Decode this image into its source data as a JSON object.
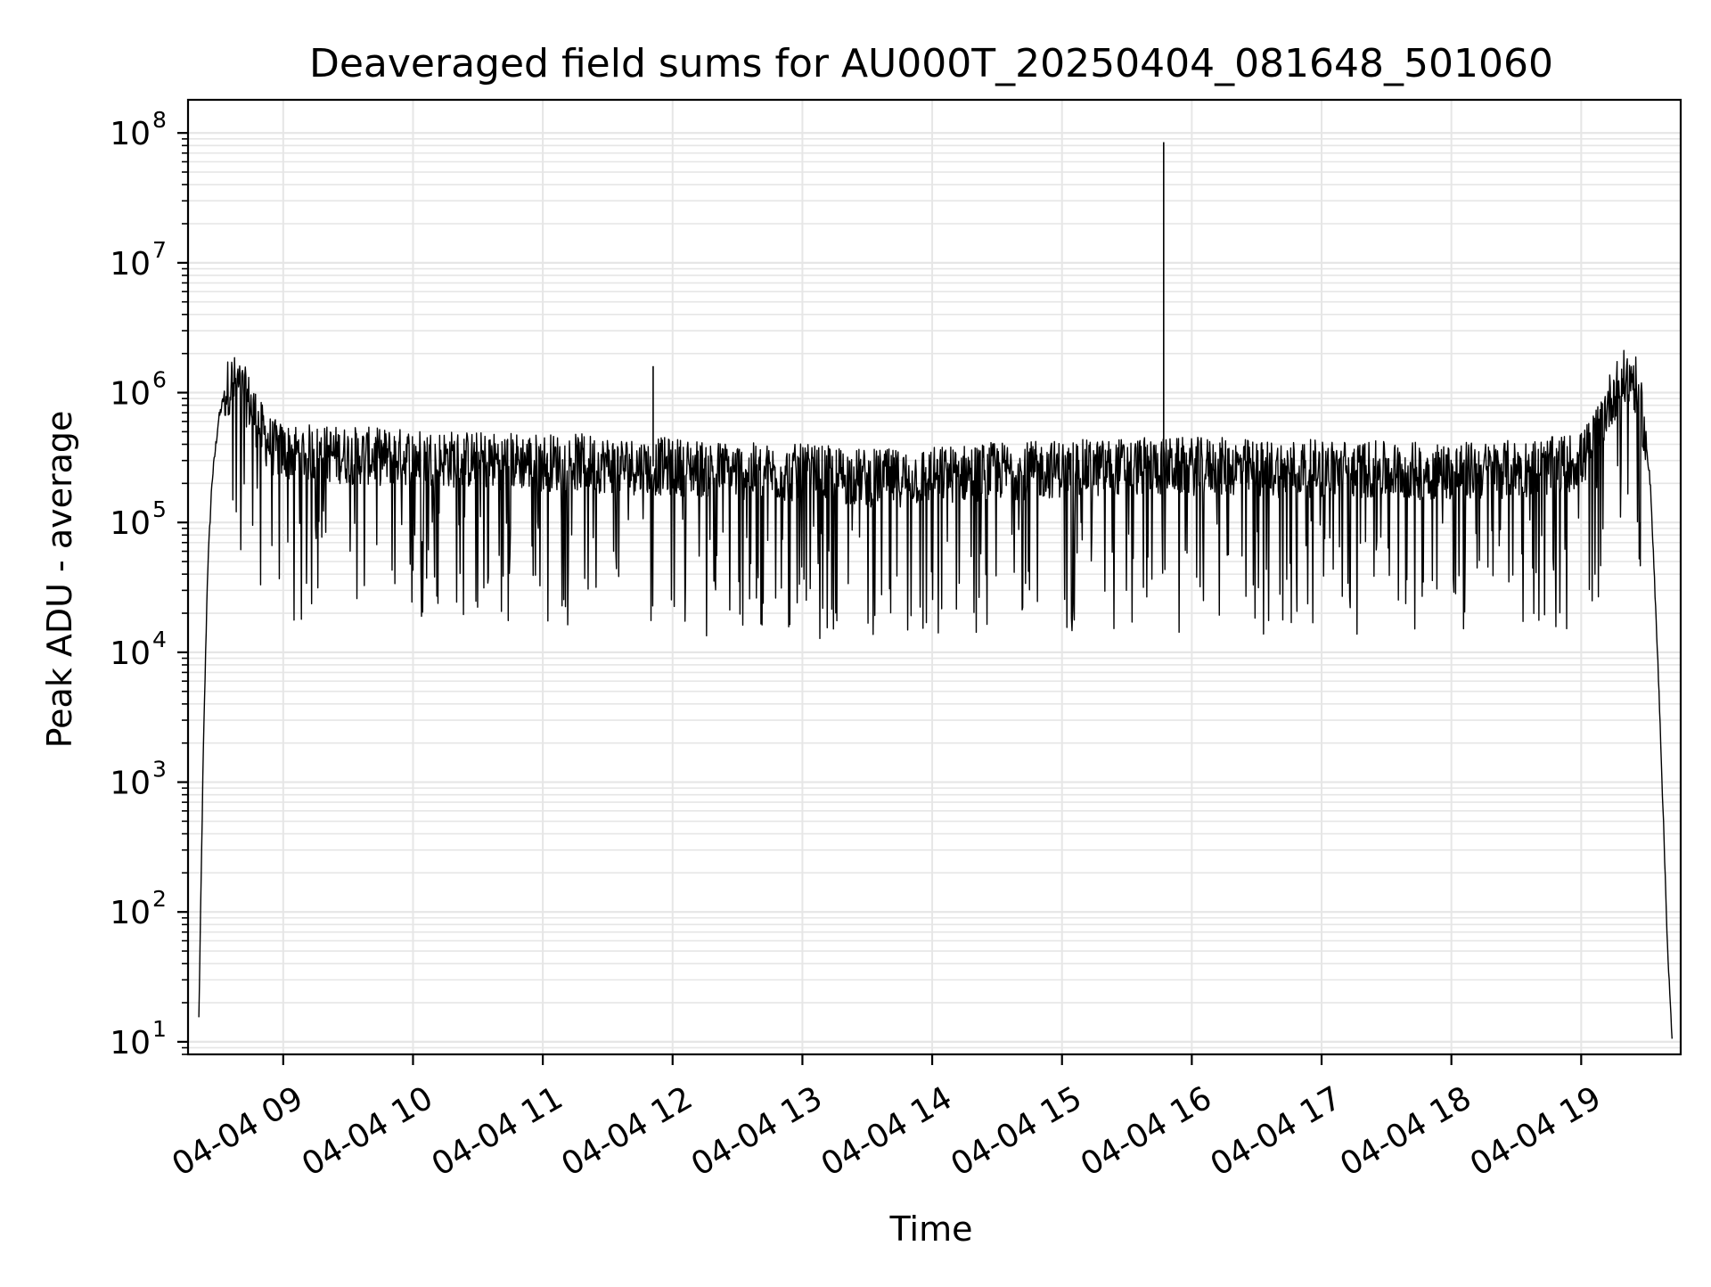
{
  "chart_data": {
    "type": "line",
    "title": "Deaveraged field sums for AU000T_20250404_081648_501060",
    "xlabel": "Time",
    "ylabel": "Peak ADU - average",
    "y_scale": "log",
    "ylim": [
      8,
      180000000
    ],
    "xlim": [
      "2025-04-04 08:16",
      "2025-04-04 19:46"
    ],
    "grid": true,
    "grid_minor": true,
    "line_color": "#000000",
    "grid_color": "#e6e6e6",
    "x_ticks": [
      {
        "value": "2025-04-04 09:00",
        "label": "04-04 09"
      },
      {
        "value": "2025-04-04 10:00",
        "label": "04-04 10"
      },
      {
        "value": "2025-04-04 11:00",
        "label": "04-04 11"
      },
      {
        "value": "2025-04-04 12:00",
        "label": "04-04 12"
      },
      {
        "value": "2025-04-04 13:00",
        "label": "04-04 13"
      },
      {
        "value": "2025-04-04 14:00",
        "label": "04-04 14"
      },
      {
        "value": "2025-04-04 15:00",
        "label": "04-04 15"
      },
      {
        "value": "2025-04-04 16:00",
        "label": "04-04 16"
      },
      {
        "value": "2025-04-04 17:00",
        "label": "04-04 17"
      },
      {
        "value": "2025-04-04 18:00",
        "label": "04-04 18"
      },
      {
        "value": "2025-04-04 19:00",
        "label": "04-04 19"
      }
    ],
    "y_ticks": [
      {
        "value": 10,
        "base": "10",
        "exp": "1"
      },
      {
        "value": 100,
        "base": "10",
        "exp": "2"
      },
      {
        "value": 1000,
        "base": "10",
        "exp": "3"
      },
      {
        "value": 10000,
        "base": "10",
        "exp": "4"
      },
      {
        "value": 100000,
        "base": "10",
        "exp": "5"
      },
      {
        "value": 1000000,
        "base": "10",
        "exp": "6"
      },
      {
        "value": 10000000,
        "base": "10",
        "exp": "7"
      },
      {
        "value": 100000000,
        "base": "10",
        "exp": "8"
      }
    ],
    "series": [
      {
        "x": [
          "2025-04-04 08:21",
          "2025-04-04 08:23",
          "2025-04-04 08:25",
          "2025-04-04 08:27",
          "2025-04-04 08:30",
          "2025-04-04 08:33",
          "2025-04-04 08:36",
          "2025-04-04 08:40",
          "2025-04-04 08:45",
          "2025-04-04 08:50",
          "2025-04-04 08:55",
          "2025-04-04 09:00",
          "2025-04-04 09:15",
          "2025-04-04 09:30",
          "2025-04-04 09:45",
          "2025-04-04 10:00",
          "2025-04-04 10:15",
          "2025-04-04 10:30",
          "2025-04-04 10:45",
          "2025-04-04 11:00",
          "2025-04-04 11:15",
          "2025-04-04 11:30",
          "2025-04-04 11:45",
          "2025-04-04 12:00",
          "2025-04-04 12:15",
          "2025-04-04 12:30",
          "2025-04-04 12:45",
          "2025-04-04 13:00",
          "2025-04-04 13:15",
          "2025-04-04 13:30",
          "2025-04-04 13:45",
          "2025-04-04 14:00",
          "2025-04-04 14:15",
          "2025-04-04 14:30",
          "2025-04-04 14:45",
          "2025-04-04 15:00",
          "2025-04-04 15:15",
          "2025-04-04 15:30",
          "2025-04-04 15:45",
          "2025-04-04 16:00",
          "2025-04-04 16:15",
          "2025-04-04 16:30",
          "2025-04-04 16:45",
          "2025-04-04 17:00",
          "2025-04-04 17:15",
          "2025-04-04 17:30",
          "2025-04-04 17:45",
          "2025-04-04 18:00",
          "2025-04-04 18:15",
          "2025-04-04 18:30",
          "2025-04-04 18:45",
          "2025-04-04 19:00",
          "2025-04-04 19:05",
          "2025-04-04 19:10",
          "2025-04-04 19:15",
          "2025-04-04 19:19",
          "2025-04-04 19:23",
          "2025-04-04 19:27",
          "2025-04-04 19:32",
          "2025-04-04 19:36",
          "2025-04-04 19:40",
          "2025-04-04 19:42"
        ],
        "y": [
          15,
          1500,
          40000,
          200000,
          600000,
          1000000,
          1200000,
          1100000,
          800000,
          500000,
          380000,
          350000,
          340000,
          330000,
          320000,
          320000,
          310000,
          300000,
          300000,
          290000,
          290000,
          280000,
          270000,
          270000,
          260000,
          250000,
          240000,
          240000,
          230000,
          220000,
          220000,
          230000,
          240000,
          250000,
          250000,
          260000,
          260000,
          270000,
          270000,
          270000,
          270000,
          260000,
          260000,
          260000,
          260000,
          250000,
          250000,
          250000,
          250000,
          260000,
          270000,
          300000,
          400000,
          650000,
          1000000,
          1250000,
          1300000,
          1000000,
          200000,
          5000,
          50,
          10
        ],
        "spikes": [
          {
            "x": "2025-04-04 11:51",
            "y": 1600000
          },
          {
            "x": "2025-04-04 15:47",
            "y": 85000000
          }
        ],
        "noise_floor_approx": 20000
      }
    ]
  }
}
